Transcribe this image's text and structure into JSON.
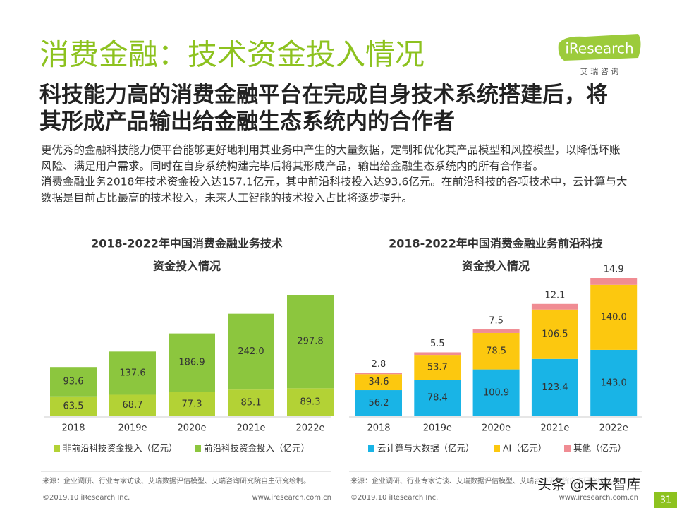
{
  "header": {
    "title": "消费金融：技术资金投入情况",
    "logo": "iResearch",
    "logo_sub": "艾 瑞 咨 询"
  },
  "subtitle": [
    "科技能力高的消费金融平台在完成自身技术系统搭建后，将",
    "其形成产品输出给金融生态系统内的合作者"
  ],
  "body": [
    "更优秀的金融科技能力使平台能够更好地利用其业务中产生的大量数据，定制和优化其产品模型和风控模型，以降低坏账",
    "风险、满足用户需求。同时在自身系统构建完毕后将其形成产品，输出给金融生态系统内的所有合作者。",
    "消费金融业务2018年技术资金投入达157.1亿元，其中前沿科技投入达93.6亿元。在前沿科技的各项技术中，云计算与大",
    "数据是目前占比最高的技术投入，未来人工智能的技术投入占比将逐步提升。"
  ],
  "chart_data": [
    {
      "type": "bar",
      "stacked": true,
      "title": [
        "2018-2022年中国消费金融业务技术",
        "资金投入情况"
      ],
      "categories": [
        "2018",
        "2019e",
        "2020e",
        "2021e",
        "2022e"
      ],
      "series": [
        {
          "name": "非前沿科技资金投入（亿元）",
          "color": "#b3d235",
          "values": [
            63.5,
            68.7,
            77.3,
            85.1,
            89.3
          ]
        },
        {
          "name": "前沿科技资金投入（亿元）",
          "color": "#8cc63e",
          "values": [
            93.6,
            137.6,
            186.9,
            242,
            297.8
          ],
          "value_labels": [
            "93.6",
            "137.6",
            "186.9",
            "242.0",
            "297.8"
          ]
        }
      ]
    },
    {
      "type": "bar",
      "stacked": true,
      "title": [
        "2018-2022年中国消费金融业务前沿科技",
        "资金投入情况"
      ],
      "categories": [
        "2018",
        "2019e",
        "2020e",
        "2021e",
        "2022e"
      ],
      "series": [
        {
          "name": "云计算与大数据（亿元）",
          "color": "#19b4e6",
          "values": [
            56.2,
            78.4,
            100.9,
            123.4,
            143
          ],
          "value_labels": [
            "56.2",
            "78.4",
            "100.9",
            "123.4",
            "143.0"
          ]
        },
        {
          "name": "AI（亿元）",
          "color": "#fcc80f",
          "values": [
            34.6,
            53.7,
            78.5,
            106.5,
            140
          ],
          "value_labels": [
            "34.6",
            "53.7",
            "78.5",
            "106.5",
            "140.0"
          ]
        },
        {
          "name": "其他（亿元）",
          "color": "#f08c93",
          "values": [
            2.8,
            5.5,
            7.5,
            12.1,
            14.9
          ]
        }
      ]
    }
  ],
  "footer": {
    "left_source": "来源：企业调研、行业专家访谈、艾瑞数据评估模型、艾瑞咨询研究院自主研究绘制。",
    "right_source": "来源：企业调研、行业专家访谈、艾瑞数据评估模型、艾瑞咨询研究院自主研究绘制。",
    "left_copyright": "©2019.10 iResearch Inc.",
    "left_url": "www.iresearch.com.cn",
    "right_copyright": "©2019.10 iResearch Inc.",
    "right_url": "www.iresearch.com.cn",
    "page_number": "31",
    "watermark": "头条 @未来智库"
  }
}
